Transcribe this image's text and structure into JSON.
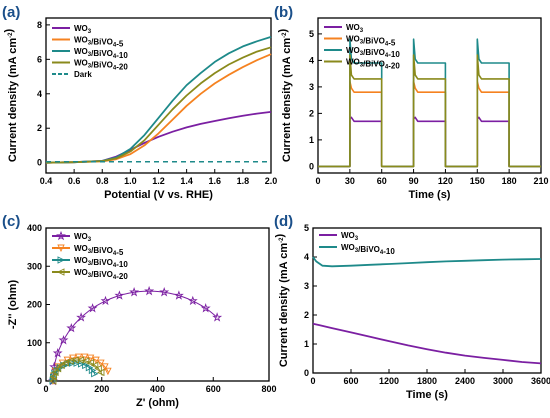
{
  "colors": {
    "WO3": "#7b1fa2",
    "BiVO4_5": "#f58220",
    "BiVO4_10": "#1e8a8a",
    "BiVO4_20": "#8a8a1c",
    "dark": "#1e8a8a",
    "panel_label": "#1a4f8a"
  },
  "chart_data": [
    {
      "panel": "(a)",
      "type": "line",
      "xlabel": "Potential (V vs. RHE)",
      "ylabel": "Current density (mA cm⁻²)",
      "xlim": [
        0.4,
        2.0
      ],
      "ylim": [
        -0.6,
        8.4
      ],
      "xticks": [
        "0.4",
        "0.6",
        "0.8",
        "1.0",
        "1.2",
        "1.4",
        "1.6",
        "1.8",
        "2.0"
      ],
      "yticks": [
        "0",
        "2",
        "4",
        "6",
        "8"
      ],
      "legend_position": "top-left",
      "series": [
        {
          "name": "WO₃",
          "x": [
            0.4,
            0.6,
            0.8,
            0.9,
            1.0,
            1.1,
            1.2,
            1.3,
            1.4,
            1.5,
            1.6,
            1.7,
            1.8,
            1.9,
            2.0
          ],
          "y": [
            0,
            0.03,
            0.1,
            0.35,
            0.75,
            1.15,
            1.5,
            1.8,
            2.05,
            2.25,
            2.42,
            2.58,
            2.72,
            2.85,
            2.95
          ]
        },
        {
          "name": "WO₃/BiVO₄-5",
          "x": [
            0.4,
            0.6,
            0.8,
            0.9,
            1.0,
            1.1,
            1.2,
            1.3,
            1.4,
            1.5,
            1.6,
            1.7,
            1.8,
            1.9,
            2.0
          ],
          "y": [
            0,
            0.03,
            0.08,
            0.2,
            0.5,
            1.0,
            1.7,
            2.5,
            3.3,
            4.0,
            4.6,
            5.1,
            5.55,
            5.95,
            6.3
          ]
        },
        {
          "name": "WO₃/BiVO₄-10",
          "x": [
            0.4,
            0.6,
            0.8,
            0.9,
            1.0,
            1.1,
            1.2,
            1.3,
            1.4,
            1.5,
            1.6,
            1.7,
            1.8,
            1.9,
            2.0
          ],
          "y": [
            0,
            0.03,
            0.1,
            0.3,
            0.8,
            1.6,
            2.6,
            3.6,
            4.5,
            5.2,
            5.85,
            6.35,
            6.75,
            7.05,
            7.3
          ]
        },
        {
          "name": "WO₃/BiVO₄-20",
          "x": [
            0.4,
            0.6,
            0.8,
            0.9,
            1.0,
            1.1,
            1.2,
            1.3,
            1.4,
            1.5,
            1.6,
            1.7,
            1.8,
            1.9,
            2.0
          ],
          "y": [
            0,
            0.03,
            0.09,
            0.25,
            0.65,
            1.3,
            2.2,
            3.1,
            3.9,
            4.6,
            5.2,
            5.7,
            6.1,
            6.45,
            6.7
          ]
        },
        {
          "name": "Dark",
          "dashed": true,
          "x": [
            0.4,
            2.0
          ],
          "y": [
            0.05,
            0.05
          ]
        }
      ]
    },
    {
      "panel": "(b)",
      "type": "line",
      "xlabel": "Time (s)",
      "ylabel": "Current density (mA cm⁻²)",
      "xlim": [
        0,
        210
      ],
      "ylim": [
        -0.25,
        5.6
      ],
      "xticks": [
        "0",
        "30",
        "60",
        "90",
        "120",
        "150",
        "180",
        "210"
      ],
      "yticks": [
        "0",
        "1",
        "2",
        "3",
        "4",
        "5"
      ],
      "legend_position": "top-left",
      "light_intervals": [
        [
          30,
          60
        ],
        [
          90,
          120
        ],
        [
          150,
          180
        ]
      ],
      "series": [
        {
          "name": "WO₃",
          "on_peak": 1.8,
          "on_level": 1.7
        },
        {
          "name": "WO₃/BiVO₄-5",
          "on_peak": 3.2,
          "on_level": 2.8
        },
        {
          "name": "WO₃/BiVO₄-10",
          "on_peak": 4.8,
          "on_level": 3.9
        },
        {
          "name": "WO₃/BiVO₄-20",
          "on_peak": 4.2,
          "on_level": 3.3
        }
      ]
    },
    {
      "panel": "(c)",
      "type": "scatter",
      "xlabel": "Z' (ohm)",
      "ylabel": "-Z'' (ohm)",
      "xlim": [
        0,
        800
      ],
      "ylim": [
        0,
        400
      ],
      "xticks": [
        "0",
        "200",
        "400",
        "600",
        "800"
      ],
      "yticks": [
        "0",
        "100",
        "200",
        "300",
        "400"
      ],
      "legend_position": "top-left",
      "series": [
        {
          "name": "WO₃",
          "marker": "star",
          "center": 370,
          "rs": 25,
          "r": 345,
          "x_end": 615,
          "peak": 235
        },
        {
          "name": "WO₃/BiVO₄-5",
          "marker": "triangle-down",
          "center": 128,
          "rs": 25,
          "r": 103,
          "x_end": 225,
          "peak": 63
        },
        {
          "name": "WO₃/BiVO₄-10",
          "marker": "triangle-right",
          "center": 103,
          "rs": 25,
          "r": 78,
          "x_end": 178,
          "peak": 47
        },
        {
          "name": "WO₃/BiVO₄-20",
          "marker": "triangle-left",
          "center": 115,
          "rs": 25,
          "r": 90,
          "x_end": 202,
          "peak": 55
        }
      ]
    },
    {
      "panel": "(d)",
      "type": "line",
      "xlabel": "Time (s)",
      "ylabel": "Current density (mA cm⁻²)",
      "xlim": [
        0,
        3600
      ],
      "ylim": [
        0,
        5
      ],
      "xticks": [
        "0",
        "600",
        "1200",
        "1800",
        "2400",
        "3000",
        "3600"
      ],
      "yticks": [
        "0",
        "1",
        "2",
        "3",
        "4",
        "5"
      ],
      "legend_position": "top-left",
      "series": [
        {
          "name": "WO₃",
          "x": [
            0,
            100,
            300,
            600,
            900,
            1200,
            1500,
            1800,
            2100,
            2400,
            2700,
            3000,
            3300,
            3600
          ],
          "y": [
            1.7,
            1.65,
            1.55,
            1.4,
            1.25,
            1.1,
            0.95,
            0.82,
            0.7,
            0.6,
            0.52,
            0.45,
            0.38,
            0.33
          ]
        },
        {
          "name": "WO₃/BiVO₄-10",
          "x": [
            0,
            50,
            150,
            300,
            600,
            900,
            1200,
            1500,
            1800,
            2100,
            2400,
            2700,
            3000,
            3300,
            3600
          ],
          "y": [
            4.0,
            3.85,
            3.7,
            3.68,
            3.7,
            3.73,
            3.76,
            3.79,
            3.82,
            3.85,
            3.87,
            3.89,
            3.91,
            3.92,
            3.93
          ]
        }
      ]
    }
  ]
}
